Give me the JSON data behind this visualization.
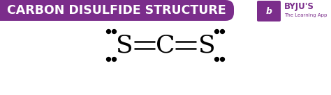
{
  "title": "CARBON DISULFIDE STRUCTURE",
  "title_bg_color": "#7B2D8B",
  "title_text_color": "#FFFFFF",
  "main_bg_color": "#FFFFFF",
  "byju_text": "BYJU'S",
  "byju_sub": "The Learning App",
  "byju_color": "#7B2D8B",
  "dot_color": "#000000",
  "formula_fontsize": 26,
  "title_fontsize": 12.5,
  "byju_icon_text": "b"
}
